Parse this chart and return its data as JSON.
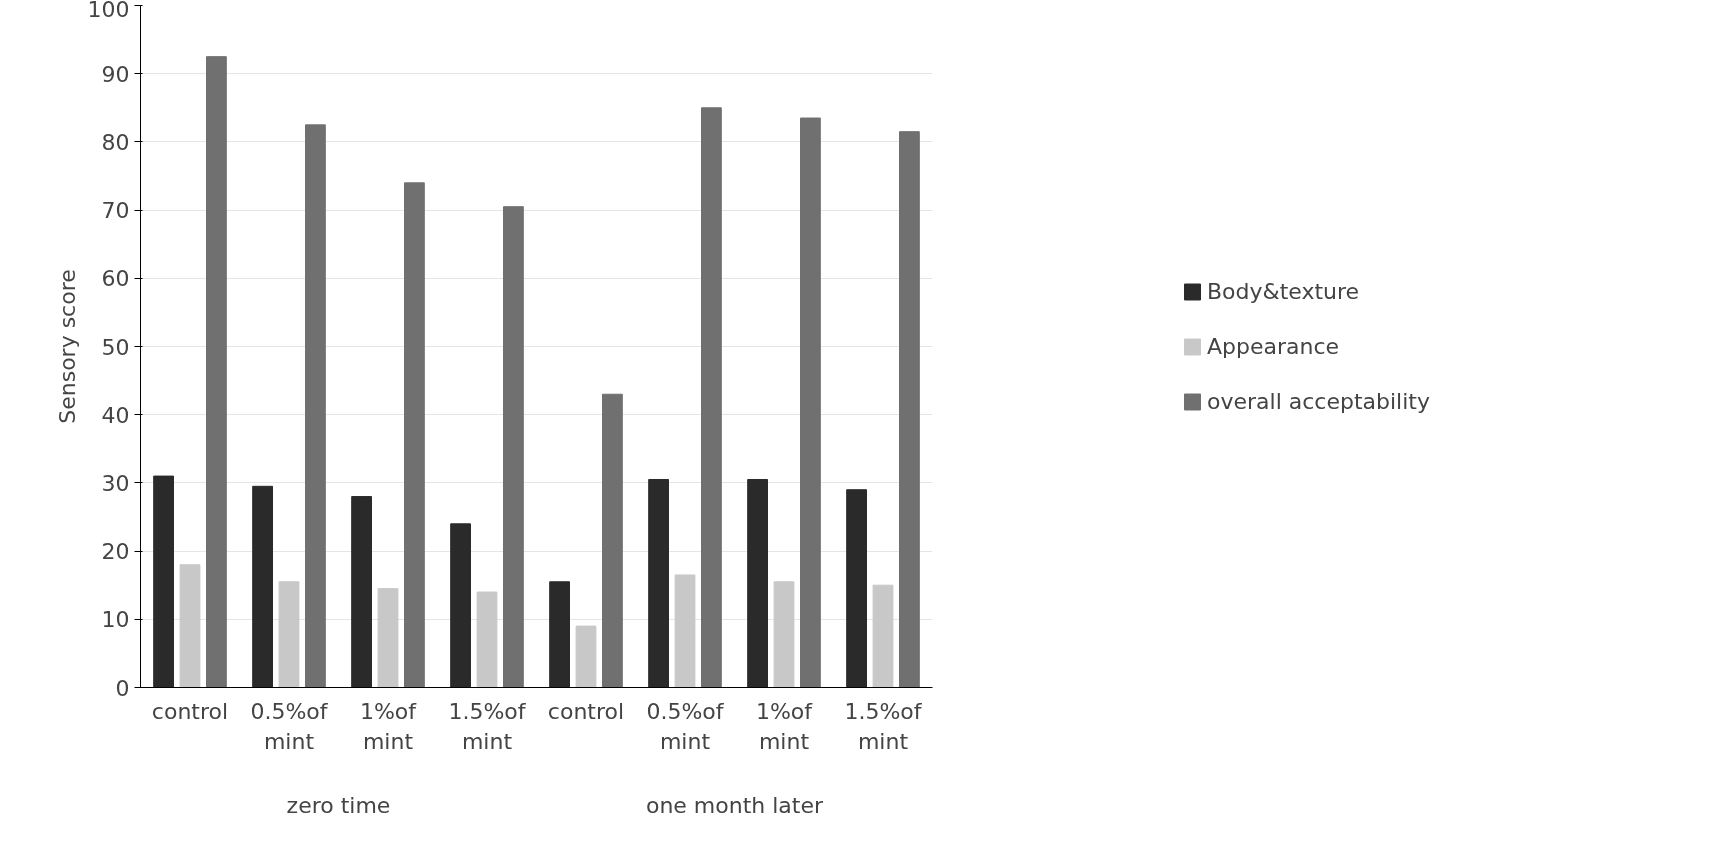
{
  "chart_data": {
    "type": "bar",
    "ylabel": "Sensory score",
    "categories": [
      "control",
      "0.5%of mint",
      "1%of mint",
      "1.5%of mint",
      "control",
      "0.5%of mint",
      "1%of mint",
      "1.5%of mint"
    ],
    "series": [
      {
        "name": "Body&texture",
        "color": "#2a2a2a",
        "values": [
          31,
          29.5,
          28,
          24,
          15.5,
          30.5,
          30.5,
          29
        ]
      },
      {
        "name": "Appearance",
        "color": "#c8c8c8",
        "values": [
          18,
          15.5,
          14.5,
          14,
          9,
          16.5,
          15.5,
          15
        ]
      },
      {
        "name": "overall acceptability",
        "color": "#707070",
        "values": [
          92.5,
          82.5,
          74,
          70.5,
          43,
          85,
          83.5,
          81.5
        ]
      }
    ],
    "annotations": [
      "zero time",
      "one month later"
    ],
    "ylim": [
      0,
      100
    ],
    "yticks": [
      0,
      10,
      20,
      30,
      40,
      50,
      60,
      70,
      80,
      90,
      100
    ],
    "grid": "y",
    "legend": "right"
  }
}
